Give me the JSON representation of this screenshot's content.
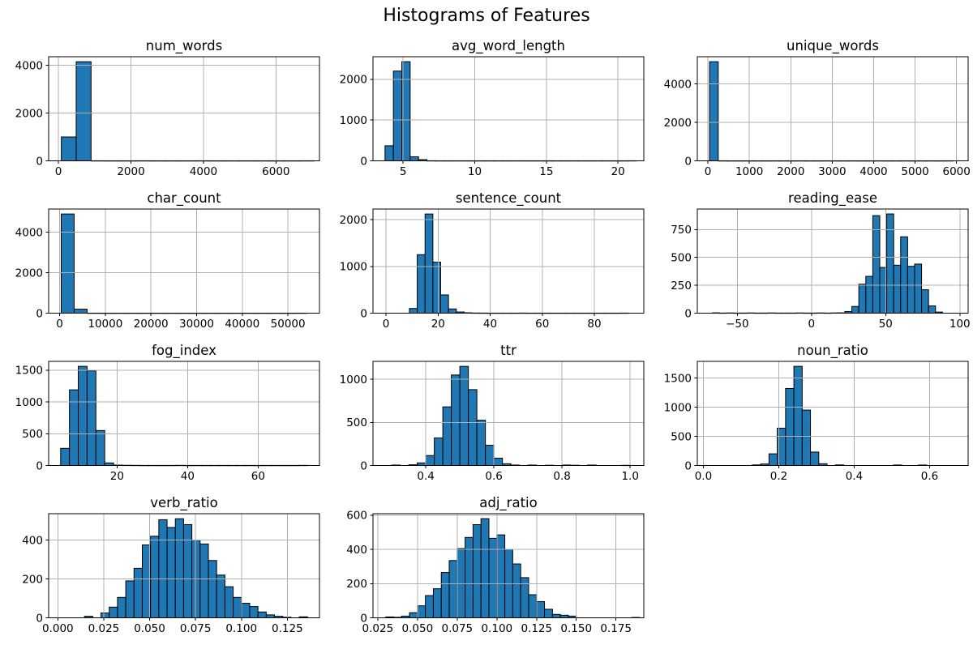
{
  "chart_data": {
    "type": "histogram-grid",
    "title": "Histograms of Features",
    "layout": {
      "rows": 4,
      "cols": 3,
      "grid_on": true
    },
    "colors": {
      "bar_fill": "#1f77b4",
      "bar_edge": "#000000",
      "grid": "#b0b0b0",
      "spine": "#000000",
      "background": "#ffffff"
    },
    "subplots": [
      {
        "title": "num_words",
        "xlim": [
          -270,
          7200
        ],
        "ylim": [
          0,
          4360
        ],
        "xtick_values": [
          0,
          2000,
          4000,
          6000
        ],
        "xtick_labels": [
          "0",
          "2000",
          "4000",
          "6000"
        ],
        "ytick_values": [
          0,
          2000,
          4000
        ],
        "ytick_labels": [
          "0",
          "2000",
          "4000"
        ],
        "bin_start": 80,
        "bin_width": 410,
        "counts": [
          1000,
          4150,
          2,
          1,
          1,
          2,
          1,
          1,
          1,
          2,
          1,
          1,
          1,
          1,
          1,
          1,
          2
        ]
      },
      {
        "title": "avg_word_length",
        "xlim": [
          2.9,
          21.8
        ],
        "ylim": [
          0,
          2552
        ],
        "xtick_values": [
          5,
          10,
          15,
          20
        ],
        "xtick_labels": [
          "5",
          "10",
          "15",
          "20"
        ],
        "ytick_values": [
          0,
          1000,
          2000
        ],
        "ytick_labels": [
          "0",
          "1000",
          "2000"
        ],
        "bin_start": 3.74,
        "bin_width": 0.585,
        "counts": [
          370,
          2200,
          2430,
          100,
          30,
          2,
          1,
          1,
          1,
          1,
          1,
          1,
          1,
          1,
          1,
          1,
          1,
          1,
          1,
          1,
          1,
          1,
          1,
          1,
          1,
          1,
          1,
          1,
          1,
          2
        ]
      },
      {
        "title": "unique_words",
        "xlim": [
          -255,
          6280
        ],
        "ylim": [
          0,
          5420
        ],
        "xtick_values": [
          0,
          1000,
          2000,
          3000,
          4000,
          5000,
          6000
        ],
        "xtick_labels": [
          "0",
          "1000",
          "2000",
          "3000",
          "4000",
          "5000",
          "6000"
        ],
        "ytick_values": [
          0,
          2000,
          4000
        ],
        "ytick_labels": [
          "0",
          "2000",
          "4000"
        ],
        "bin_start": 40,
        "bin_width": 210,
        "counts": [
          5160,
          2,
          1,
          1,
          1,
          1,
          1,
          1,
          1,
          1,
          1,
          1,
          1,
          1,
          1,
          1,
          1,
          1,
          1,
          1,
          1,
          1,
          1,
          1,
          1,
          1,
          1,
          2
        ]
      },
      {
        "title": "char_count",
        "xlim": [
          -2400,
          56900
        ],
        "ylim": [
          0,
          5145
        ],
        "xtick_values": [
          0,
          10000,
          20000,
          30000,
          40000,
          50000
        ],
        "xtick_labels": [
          "0",
          "10000",
          "20000",
          "30000",
          "40000",
          "50000"
        ],
        "ytick_values": [
          0,
          2000,
          4000
        ],
        "ytick_labels": [
          "0",
          "2000",
          "4000"
        ],
        "bin_start": 350,
        "bin_width": 2830,
        "counts": [
          4900,
          200,
          2,
          1,
          1,
          1,
          1,
          1,
          1,
          1,
          1,
          1,
          1,
          1,
          1,
          1,
          1,
          1,
          2
        ]
      },
      {
        "title": "sentence_count",
        "xlim": [
          -5,
          99
        ],
        "ylim": [
          0,
          2226
        ],
        "xtick_values": [
          0,
          20,
          40,
          60,
          80
        ],
        "xtick_labels": [
          "0",
          "20",
          "40",
          "60",
          "80"
        ],
        "ytick_values": [
          0,
          1000,
          2000
        ],
        "ytick_labels": [
          "0",
          "1000",
          "2000"
        ],
        "bin_start": 9,
        "bin_width": 3,
        "counts": [
          100,
          1250,
          2120,
          1090,
          390,
          90,
          25,
          8,
          3,
          2,
          1,
          1,
          1,
          1,
          2,
          1,
          1,
          1,
          1,
          1,
          1,
          1,
          1,
          1,
          1,
          1,
          1,
          2
        ]
      },
      {
        "title": "reading_ease",
        "xlim": [
          -77,
          105.6
        ],
        "ylim": [
          0,
          934
        ],
        "xtick_values": [
          -50,
          0,
          50,
          100
        ],
        "xtick_labels": [
          "−50",
          "0",
          "50",
          "100"
        ],
        "ytick_values": [
          0,
          250,
          500,
          750
        ],
        "ytick_labels": [
          "0",
          "250",
          "500",
          "750"
        ],
        "bin_start": -66.8,
        "bin_width": 4.7,
        "counts": [
          3,
          1,
          2,
          1,
          1,
          2,
          1,
          1,
          2,
          1,
          1,
          1,
          2,
          1,
          1,
          2,
          1,
          2,
          3,
          15,
          60,
          260,
          330,
          875,
          410,
          890,
          430,
          685,
          420,
          440,
          210,
          65,
          10
        ]
      },
      {
        "title": "fog_index",
        "xlim": [
          0.6,
          77.4
        ],
        "ylim": [
          0,
          1638
        ],
        "xtick_values": [
          20,
          40,
          60
        ],
        "xtick_labels": [
          "20",
          "40",
          "60"
        ],
        "ytick_values": [
          0,
          500,
          1000,
          1500
        ],
        "ytick_labels": [
          "0",
          "500",
          "1000",
          "1500"
        ],
        "bin_start": 4.0,
        "bin_width": 2.5,
        "counts": [
          270,
          1190,
          1560,
          1490,
          550,
          40,
          6,
          3,
          2,
          1,
          1,
          1,
          1,
          2,
          1,
          1,
          1,
          1,
          1,
          1,
          1,
          1,
          1,
          1,
          1,
          1,
          1,
          2
        ]
      },
      {
        "title": "ttr",
        "xlim": [
          0.245,
          1.04
        ],
        "ylim": [
          0,
          1208
        ],
        "xtick_values": [
          0.4,
          0.6,
          0.8,
          1.0
        ],
        "xtick_labels": [
          "0.4",
          "0.6",
          "0.8",
          "1.0"
        ],
        "ytick_values": [
          0,
          500,
          1000
        ],
        "ytick_labels": [
          "0",
          "500",
          "1000"
        ],
        "bin_start": 0.3,
        "bin_width": 0.025,
        "counts": [
          5,
          0,
          8,
          30,
          115,
          320,
          680,
          1050,
          1150,
          880,
          525,
          235,
          85,
          20,
          5,
          0,
          5,
          0,
          3,
          0,
          5,
          3,
          0,
          5,
          0,
          0,
          0,
          2
        ]
      },
      {
        "title": "noun_ratio",
        "xlim": [
          -0.016,
          0.702
        ],
        "ylim": [
          0,
          1785
        ],
        "xtick_values": [
          0.0,
          0.2,
          0.4,
          0.6
        ],
        "xtick_labels": [
          "0.0",
          "0.2",
          "0.4",
          "0.6"
        ],
        "ytick_values": [
          0,
          500,
          1000,
          1500
        ],
        "ytick_labels": [
          "0",
          "500",
          "1000",
          "1500"
        ],
        "bin_start": 0.13,
        "bin_width": 0.022,
        "counts": [
          10,
          25,
          200,
          640,
          1320,
          1700,
          950,
          230,
          30,
          0,
          10,
          0,
          0,
          0,
          0,
          0,
          0,
          8,
          0,
          0,
          8
        ]
      },
      {
        "title": "verb_ratio",
        "xlim": [
          -0.005,
          0.1425
        ],
        "ylim": [
          0,
          536
        ],
        "xtick_values": [
          0.0,
          0.025,
          0.05,
          0.075,
          0.1,
          0.125
        ],
        "xtick_labels": [
          "0.000",
          "0.025",
          "0.050",
          "0.075",
          "0.100",
          "0.125"
        ],
        "ytick_values": [
          0,
          200,
          400
        ],
        "ytick_labels": [
          "0",
          "200",
          "400"
        ],
        "bin_start": 0.0145,
        "bin_width": 0.0045,
        "counts": [
          8,
          0,
          25,
          55,
          105,
          190,
          255,
          375,
          420,
          505,
          465,
          510,
          480,
          400,
          380,
          295,
          220,
          160,
          105,
          75,
          58,
          30,
          15,
          8,
          3,
          0,
          5
        ]
      },
      {
        "title": "adj_ratio",
        "xlim": [
          0.022,
          0.1925
        ],
        "ylim": [
          0,
          609
        ],
        "xtick_values": [
          0.025,
          0.05,
          0.075,
          0.1,
          0.125,
          0.15,
          0.175
        ],
        "xtick_labels": [
          "0.025",
          "0.050",
          "0.075",
          "0.100",
          "0.125",
          "0.150",
          "0.175"
        ],
        "ytick_values": [
          0,
          200,
          400,
          600
        ],
        "ytick_labels": [
          "0",
          "200",
          "400",
          "600"
        ],
        "bin_start": 0.03,
        "bin_width": 0.005,
        "counts": [
          5,
          3,
          10,
          30,
          70,
          130,
          170,
          265,
          335,
          405,
          470,
          545,
          580,
          465,
          485,
          400,
          315,
          235,
          135,
          95,
          50,
          20,
          15,
          10,
          0,
          0,
          0,
          0,
          0,
          0,
          0,
          2
        ]
      }
    ]
  }
}
